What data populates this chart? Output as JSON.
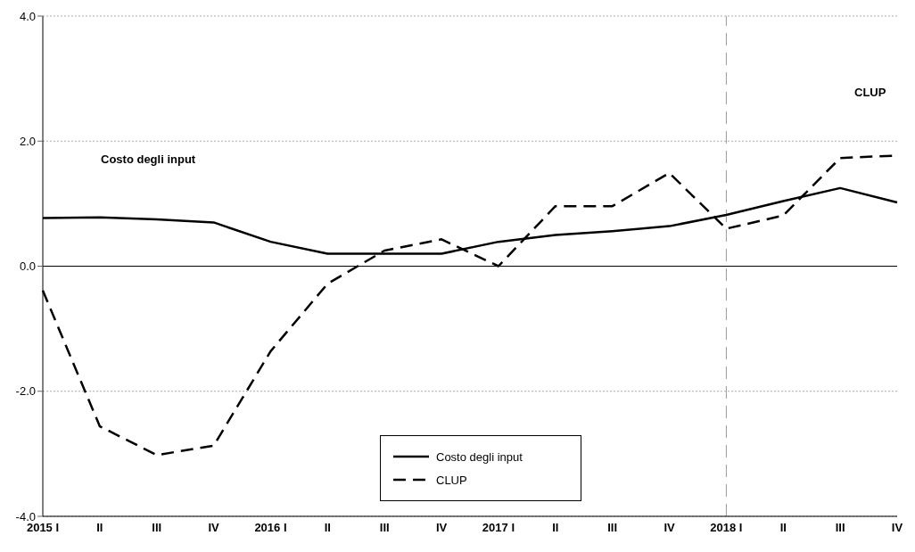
{
  "chart_data": {
    "type": "line",
    "categories": [
      "2015  I",
      "II",
      "III",
      "IV",
      "2016  I",
      "II",
      "III",
      "IV",
      "2017  I",
      "II",
      "III",
      "IV",
      "2018  I",
      "II",
      "III",
      "IV"
    ],
    "series": [
      {
        "name": "Costo degli input",
        "color": "#000000",
        "line_style": "solid",
        "values": [
          0.77,
          0.78,
          0.75,
          0.7,
          0.39,
          0.2,
          0.2,
          0.2,
          0.39,
          0.5,
          0.56,
          0.64,
          0.82,
          1.04,
          1.25,
          1.02
        ]
      },
      {
        "name": "CLUP",
        "color": "#000000",
        "line_style": "dashed",
        "values": [
          -0.39,
          -2.56,
          -3.02,
          -2.87,
          -1.36,
          -0.28,
          0.25,
          0.43,
          0.0,
          0.96,
          0.96,
          1.49,
          0.6,
          0.81,
          1.73,
          1.77
        ]
      }
    ],
    "ylim": [
      -4,
      4
    ],
    "yticks": [
      {
        "value": -4,
        "label": "-4.0"
      },
      {
        "value": -2,
        "label": "-2.0"
      },
      {
        "value": 0,
        "label": "0.0"
      },
      {
        "value": 2,
        "label": "2.0"
      },
      {
        "value": 4,
        "label": "4.0"
      }
    ],
    "grid": "y",
    "legend": "bottom",
    "marker": "none",
    "ref_lines": [
      {
        "axis": "x",
        "value": "2018  I",
        "color": "#999999",
        "line_style": "dashed"
      },
      {
        "axis": "y",
        "value": 0,
        "color": "#000000",
        "line_style": "solid"
      }
    ],
    "annotations": [
      "Costo degli input",
      "CLUP"
    ]
  }
}
